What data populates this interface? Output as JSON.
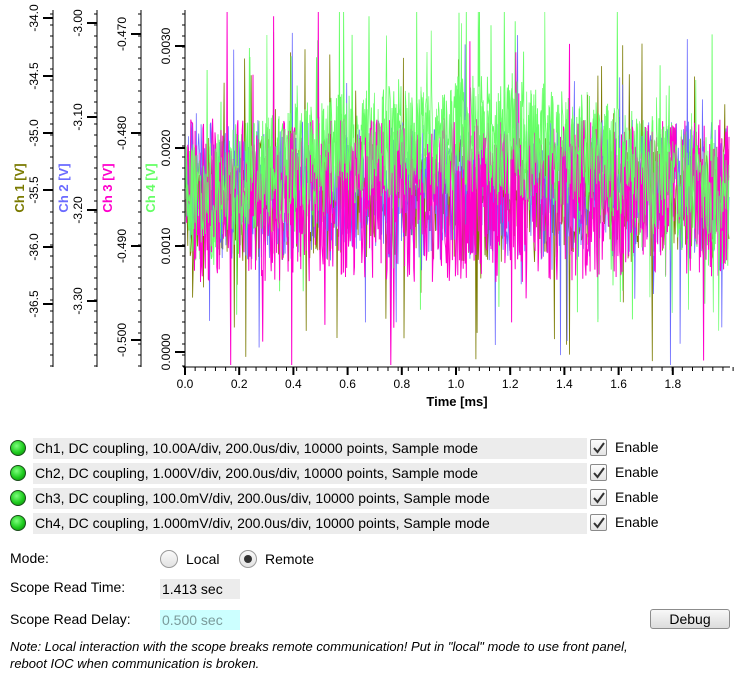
{
  "plot": {
    "xlabel": "Time [ms]",
    "x_ticks": [
      "0.0",
      "0.2",
      "0.4",
      "0.6",
      "0.8",
      "1.0",
      "1.2",
      "1.4",
      "1.6",
      "1.8"
    ],
    "axes": [
      {
        "label": "Ch 1 [V]",
        "color": "#7a7a00",
        "ticks": [
          "-34.0",
          "-34.5",
          "-35.0",
          "-35.5",
          "-36.0",
          "-36.5"
        ]
      },
      {
        "label": "Ch 2 [V]",
        "color": "#6b6bff",
        "ticks": [
          "-3.00",
          "-3.10",
          "-3.20",
          "-3.30"
        ]
      },
      {
        "label": "Ch 3 [V]",
        "color": "#ff00cc",
        "ticks": [
          "-0.470",
          "-0.480",
          "-0.490",
          "-0.500"
        ]
      },
      {
        "label": "Ch 4 [V]",
        "color": "#66ff66",
        "ticks": [
          "0.0030",
          "0.0020",
          "0.0010",
          "0.0000"
        ]
      }
    ]
  },
  "channels": [
    {
      "text": "Ch1, DC coupling, 10.00A/div, 200.0us/div, 10000 points, Sample mode",
      "enable_label": "Enable"
    },
    {
      "text": "Ch2, DC coupling, 1.000V/div, 200.0us/div, 10000 points, Sample mode",
      "enable_label": "Enable"
    },
    {
      "text": "Ch3, DC coupling, 100.0mV/div, 200.0us/div, 10000 points, Sample mode",
      "enable_label": "Enable"
    },
    {
      "text": "Ch4, DC coupling, 1.000mV/div, 200.0us/div, 10000 points, Sample mode",
      "enable_label": "Enable"
    }
  ],
  "mode": {
    "label": "Mode:",
    "local": "Local",
    "remote": "Remote",
    "selected": "Remote"
  },
  "read_time": {
    "label": "Scope Read Time:",
    "value": "1.413 sec"
  },
  "read_delay": {
    "label": "Scope Read Delay:",
    "value": "0.500 sec"
  },
  "debug_label": "Debug",
  "note": "Note: Local interaction with the scope breaks remote communication! Put in \"local\" mode to use front panel, reboot IOC when communication is broken.",
  "icons": {
    "led": "green-led-icon",
    "check": "checkmark-icon",
    "radio": "radio-icon"
  }
}
